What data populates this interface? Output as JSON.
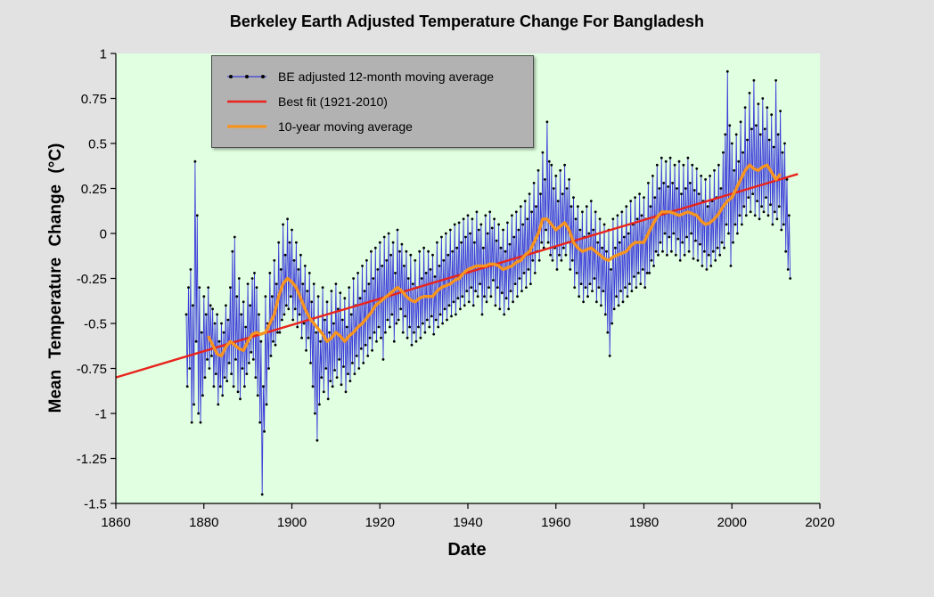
{
  "chart_data": {
    "type": "line",
    "title": "Berkeley Earth Adjusted Temperature Change For Bangladesh",
    "xlabel": "Date",
    "ylabel": "Mean Temperature Change (°C)",
    "xlim": [
      1860,
      2020
    ],
    "ylim": [
      -1.5,
      1
    ],
    "x_ticks": [
      1860,
      1880,
      1900,
      1920,
      1940,
      1960,
      1980,
      2000,
      2020
    ],
    "y_ticks": [
      1,
      0.75,
      0.5,
      0.25,
      0,
      -0.25,
      -0.5,
      -0.75,
      -1,
      -1.25,
      -1.5
    ],
    "grid": false,
    "plot_bg": "#e1ffe1",
    "outer_bg": "#e2e2e2",
    "legend_bg": "#b2b2b2",
    "legend_position": "top-left",
    "series": [
      {
        "id": "be-12mo",
        "name": "BE adjusted 12-month moving average",
        "type": "line+markers",
        "color": "#3c3cd9",
        "marker_color": "#000000",
        "line_width": 0.9,
        "x_start": 1876.0,
        "x_step": 0.25,
        "values": [
          -0.45,
          -0.85,
          -0.3,
          -0.75,
          -0.2,
          -1.05,
          -0.4,
          -0.95,
          0.4,
          -0.6,
          0.1,
          -1.0,
          -0.3,
          -1.05,
          -0.55,
          -0.9,
          -0.35,
          -0.8,
          -0.45,
          -0.7,
          -0.3,
          -0.75,
          -0.4,
          -0.68,
          -0.42,
          -0.85,
          -0.5,
          -0.78,
          -0.45,
          -0.95,
          -0.6,
          -0.85,
          -0.5,
          -0.9,
          -0.55,
          -0.8,
          -0.4,
          -0.82,
          -0.48,
          -0.72,
          -0.3,
          -0.78,
          -0.1,
          -0.85,
          -0.02,
          -0.7,
          -0.35,
          -0.88,
          -0.25,
          -0.92,
          -0.45,
          -0.75,
          -0.38,
          -0.85,
          -0.52,
          -0.78,
          -0.28,
          -0.72,
          -0.4,
          -0.66,
          -0.25,
          -0.7,
          -0.22,
          -0.8,
          -0.3,
          -0.9,
          -0.45,
          -1.05,
          -0.6,
          -1.45,
          -0.85,
          -1.1,
          -0.35,
          -0.95,
          -0.5,
          -0.75,
          -0.22,
          -0.68,
          -0.35,
          -0.6,
          -0.15,
          -0.62,
          -0.28,
          -0.55,
          -0.05,
          -0.55,
          -0.2,
          -0.48,
          0.05,
          -0.45,
          -0.12,
          -0.4,
          0.08,
          -0.42,
          -0.05,
          -0.35,
          0.02,
          -0.48,
          -0.15,
          -0.42,
          -0.05,
          -0.52,
          -0.2,
          -0.45,
          -0.12,
          -0.58,
          -0.28,
          -0.5,
          -0.18,
          -0.65,
          -0.32,
          -0.58,
          -0.22,
          -0.72,
          -0.38,
          -0.85,
          -0.28,
          -1.0,
          -0.55,
          -1.15,
          -0.35,
          -0.95,
          -0.6,
          -0.8,
          -0.3,
          -0.88,
          -0.48,
          -0.75,
          -0.38,
          -0.92,
          -0.55,
          -0.82,
          -0.32,
          -0.85,
          -0.5,
          -0.76,
          -0.28,
          -0.8,
          -0.42,
          -0.7,
          -0.33,
          -0.84,
          -0.48,
          -0.74,
          -0.36,
          -0.88,
          -0.52,
          -0.78,
          -0.3,
          -0.82,
          -0.45,
          -0.72,
          -0.25,
          -0.78,
          -0.4,
          -0.68,
          -0.22,
          -0.75,
          -0.36,
          -0.64,
          -0.18,
          -0.72,
          -0.32,
          -0.62,
          -0.15,
          -0.68,
          -0.28,
          -0.58,
          -0.1,
          -0.65,
          -0.25,
          -0.55,
          -0.08,
          -0.6,
          -0.2,
          -0.52,
          -0.05,
          -0.58,
          -0.18,
          -0.7,
          -0.02,
          -0.55,
          -0.15,
          -0.48,
          0.0,
          -0.52,
          -0.12,
          -0.45,
          -0.05,
          -0.6,
          -0.22,
          -0.5,
          0.02,
          -0.48,
          -0.1,
          -0.42,
          -0.06,
          -0.55,
          -0.18,
          -0.46,
          -0.1,
          -0.58,
          -0.25,
          -0.52,
          -0.12,
          -0.62,
          -0.28,
          -0.55,
          -0.15,
          -0.6,
          -0.3,
          -0.52,
          -0.1,
          -0.58,
          -0.25,
          -0.5,
          -0.08,
          -0.55,
          -0.22,
          -0.48,
          -0.1,
          -0.52,
          -0.2,
          -0.46,
          -0.12,
          -0.56,
          -0.24,
          -0.48,
          -0.05,
          -0.52,
          -0.18,
          -0.45,
          -0.02,
          -0.5,
          -0.15,
          -0.42,
          0.0,
          -0.48,
          -0.12,
          -0.4,
          0.02,
          -0.46,
          -0.1,
          -0.38,
          0.05,
          -0.45,
          -0.08,
          -0.36,
          0.06,
          -0.42,
          -0.05,
          -0.35,
          0.08,
          -0.4,
          -0.02,
          -0.32,
          0.1,
          -0.38,
          0.0,
          -0.3,
          0.08,
          -0.4,
          -0.05,
          -0.32,
          0.12,
          -0.35,
          0.02,
          -0.28,
          0.05,
          -0.45,
          -0.08,
          -0.35,
          0.1,
          -0.38,
          0.0,
          -0.3,
          0.12,
          -0.35,
          0.03,
          -0.26,
          0.08,
          -0.4,
          -0.04,
          -0.3,
          0.05,
          -0.42,
          -0.08,
          -0.33,
          0.02,
          -0.45,
          -0.1,
          -0.36,
          0.06,
          -0.42,
          -0.06,
          -0.32,
          0.1,
          -0.38,
          -0.02,
          -0.28,
          0.12,
          -0.35,
          0.02,
          -0.25,
          0.15,
          -0.32,
          0.05,
          -0.22,
          0.18,
          -0.3,
          0.08,
          -0.2,
          0.22,
          -0.28,
          0.12,
          -0.15,
          0.28,
          -0.22,
          0.15,
          -0.1,
          0.35,
          -0.15,
          0.22,
          -0.05,
          0.45,
          -0.08,
          0.3,
          0.02,
          0.62,
          -0.05,
          0.4,
          -0.12,
          0.38,
          -0.15,
          0.25,
          -0.08,
          0.32,
          -0.2,
          0.18,
          -0.12,
          0.35,
          -0.15,
          0.22,
          -0.08,
          0.38,
          -0.12,
          0.25,
          -0.05,
          0.3,
          -0.2,
          0.15,
          -0.15,
          0.2,
          -0.3,
          0.08,
          -0.22,
          0.15,
          -0.35,
          0.02,
          -0.28,
          0.12,
          -0.38,
          -0.02,
          -0.3,
          0.15,
          -0.35,
          0.0,
          -0.28,
          0.18,
          -0.32,
          0.02,
          -0.25,
          0.12,
          -0.38,
          -0.05,
          -0.3,
          0.08,
          -0.4,
          -0.08,
          -0.32,
          0.05,
          -0.45,
          -0.1,
          -0.55,
          0.02,
          -0.68,
          -0.2,
          -0.5,
          0.08,
          -0.42,
          -0.08,
          -0.35,
          0.1,
          -0.4,
          -0.05,
          -0.32,
          0.12,
          -0.38,
          -0.02,
          -0.3,
          0.15,
          -0.35,
          0.0,
          -0.28,
          0.18,
          -0.32,
          0.05,
          -0.24,
          0.2,
          -0.3,
          0.08,
          -0.22,
          0.22,
          -0.28,
          0.1,
          -0.2,
          0.2,
          -0.3,
          0.08,
          -0.22,
          0.28,
          -0.22,
          0.15,
          -0.15,
          0.32,
          -0.18,
          0.2,
          -0.1,
          0.38,
          -0.12,
          0.25,
          -0.05,
          0.42,
          -0.1,
          0.28,
          0.0,
          0.4,
          -0.12,
          0.26,
          -0.02,
          0.42,
          -0.1,
          0.28,
          0.0,
          0.38,
          -0.12,
          0.25,
          -0.03,
          0.4,
          -0.15,
          0.22,
          -0.05,
          0.38,
          -0.12,
          0.25,
          -0.02,
          0.42,
          -0.1,
          0.28,
          0.0,
          0.38,
          -0.14,
          0.24,
          -0.04,
          0.36,
          -0.15,
          0.22,
          -0.06,
          0.32,
          -0.18,
          0.18,
          -0.1,
          0.3,
          -0.2,
          0.15,
          -0.12,
          0.32,
          -0.18,
          0.18,
          -0.1,
          0.35,
          -0.15,
          0.2,
          -0.08,
          0.38,
          -0.12,
          0.25,
          -0.05,
          0.45,
          -0.08,
          0.55,
          0.05,
          0.9,
          0.0,
          0.6,
          -0.18,
          0.5,
          -0.05,
          0.35,
          0.05,
          0.55,
          0.0,
          0.4,
          0.1,
          0.62,
          0.05,
          0.45,
          0.15,
          0.7,
          0.1,
          0.52,
          0.2,
          0.78,
          0.12,
          0.58,
          0.22,
          0.85,
          0.1,
          0.6,
          0.18,
          0.72,
          0.08,
          0.55,
          0.15,
          0.75,
          0.12,
          0.58,
          0.2,
          0.7,
          0.1,
          0.52,
          0.16,
          0.66,
          0.05,
          0.48,
          0.12,
          0.85,
          0.08,
          0.55,
          0.15,
          0.68,
          0.02,
          0.45,
          0.05,
          0.5,
          -0.1,
          0.3,
          -0.2,
          0.1,
          -0.25
        ]
      },
      {
        "id": "best-fit",
        "name": "Best fit (1921-2010)",
        "type": "line",
        "color": "#e8231c",
        "line_width": 2.4,
        "x": [
          1860,
          2015
        ],
        "y": [
          -0.8,
          0.33
        ]
      },
      {
        "id": "10yr",
        "name": "10-year moving average",
        "type": "line",
        "color": "#f79420",
        "line_width": 3.4,
        "x_start": 1881,
        "x_step": 1,
        "values": [
          -0.57,
          -0.62,
          -0.67,
          -0.68,
          -0.63,
          -0.6,
          -0.62,
          -0.64,
          -0.65,
          -0.6,
          -0.56,
          -0.55,
          -0.56,
          -0.55,
          -0.5,
          -0.45,
          -0.35,
          -0.28,
          -0.25,
          -0.27,
          -0.3,
          -0.36,
          -0.42,
          -0.47,
          -0.5,
          -0.53,
          -0.56,
          -0.6,
          -0.58,
          -0.55,
          -0.57,
          -0.6,
          -0.57,
          -0.55,
          -0.52,
          -0.5,
          -0.47,
          -0.44,
          -0.4,
          -0.38,
          -0.36,
          -0.34,
          -0.32,
          -0.3,
          -0.32,
          -0.35,
          -0.37,
          -0.38,
          -0.36,
          -0.35,
          -0.35,
          -0.35,
          -0.32,
          -0.3,
          -0.29,
          -0.28,
          -0.26,
          -0.25,
          -0.22,
          -0.2,
          -0.19,
          -0.18,
          -0.18,
          -0.18,
          -0.17,
          -0.17,
          -0.18,
          -0.2,
          -0.19,
          -0.18,
          -0.16,
          -0.15,
          -0.12,
          -0.1,
          -0.05,
          0.0,
          0.08,
          0.08,
          0.05,
          0.02,
          0.04,
          0.06,
          0.02,
          -0.05,
          -0.08,
          -0.1,
          -0.09,
          -0.08,
          -0.1,
          -0.12,
          -0.14,
          -0.15,
          -0.13,
          -0.12,
          -0.11,
          -0.1,
          -0.07,
          -0.05,
          -0.05,
          -0.05,
          0.0,
          0.05,
          0.09,
          0.12,
          0.12,
          0.12,
          0.11,
          0.1,
          0.11,
          0.12,
          0.11,
          0.1,
          0.07,
          0.05,
          0.06,
          0.08,
          0.11,
          0.15,
          0.18,
          0.2,
          0.25,
          0.3,
          0.35,
          0.38,
          0.36,
          0.35,
          0.37,
          0.38,
          0.34,
          0.3,
          0.33
        ]
      }
    ]
  }
}
